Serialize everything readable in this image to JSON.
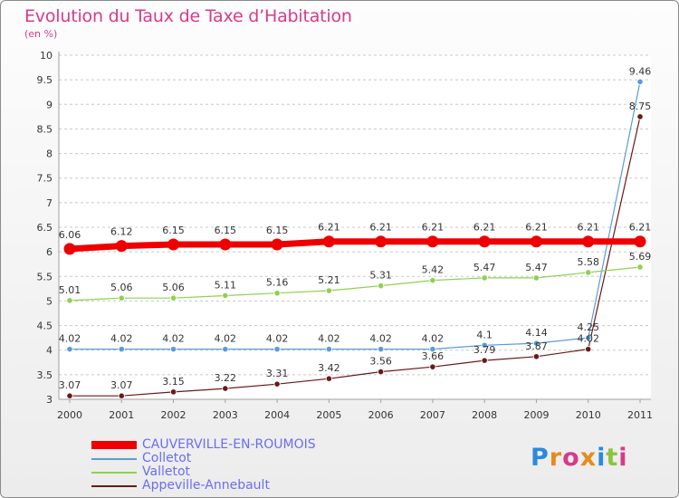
{
  "title": "Evolution du Taux de Taxe d’Habitation",
  "subtitle": "(en %)",
  "watermark": "Proxiti",
  "chart_data": {
    "type": "line",
    "x": [
      "2000",
      "2001",
      "2002",
      "2003",
      "2004",
      "2005",
      "2006",
      "2007",
      "2008",
      "2009",
      "2010",
      "2011"
    ],
    "ylim": [
      3,
      10
    ],
    "yticks": [
      "3",
      "3.5",
      "4",
      "4.5",
      "5",
      "5.5",
      "6",
      "6.5",
      "7",
      "7.5",
      "8",
      "8.5",
      "9",
      "9.5",
      "10"
    ],
    "series": [
      {
        "name": "CAUVERVILLE-EN-ROUMOIS",
        "color": "#ee0000",
        "values": [
          6.06,
          6.12,
          6.15,
          6.15,
          6.15,
          6.21,
          6.21,
          6.21,
          6.21,
          6.21,
          6.21,
          6.21
        ],
        "labels": [
          "6.06",
          "6.12",
          "6.15",
          "6.15",
          "6.15",
          "6.21",
          "6.21",
          "6.21",
          "6.21",
          "6.21",
          "6.21",
          "6.21"
        ]
      },
      {
        "name": "Colletot",
        "color": "#5b9bd5",
        "values": [
          4.02,
          4.02,
          4.02,
          4.02,
          4.02,
          4.02,
          4.02,
          4.02,
          4.1,
          4.14,
          4.25,
          9.46
        ],
        "labels": [
          "4.02",
          "4.02",
          "4.02",
          "4.02",
          "4.02",
          "4.02",
          "4.02",
          "4.02",
          "4.1",
          "4.14",
          "4.25",
          "9.46"
        ]
      },
      {
        "name": "Valletot",
        "color": "#8fd14f",
        "values": [
          5.01,
          5.06,
          5.06,
          5.11,
          5.16,
          5.21,
          5.31,
          5.42,
          5.47,
          5.47,
          5.58,
          5.69
        ],
        "labels": [
          "5.01",
          "5.06",
          "5.06",
          "5.11",
          "5.16",
          "5.21",
          "5.31",
          "5.42",
          "5.47",
          "5.47",
          "5.58",
          "5.69"
        ]
      },
      {
        "name": "Appeville-Annebault",
        "color": "#6b1818",
        "values": [
          3.07,
          3.07,
          3.15,
          3.22,
          3.31,
          3.42,
          3.56,
          3.66,
          3.79,
          3.87,
          4.02,
          8.75
        ],
        "labels": [
          "3.07",
          "3.07",
          "3.15",
          "3.22",
          "3.31",
          "3.42",
          "3.56",
          "3.66",
          "3.79",
          "3.87",
          "4.02",
          "8.75"
        ]
      }
    ]
  }
}
